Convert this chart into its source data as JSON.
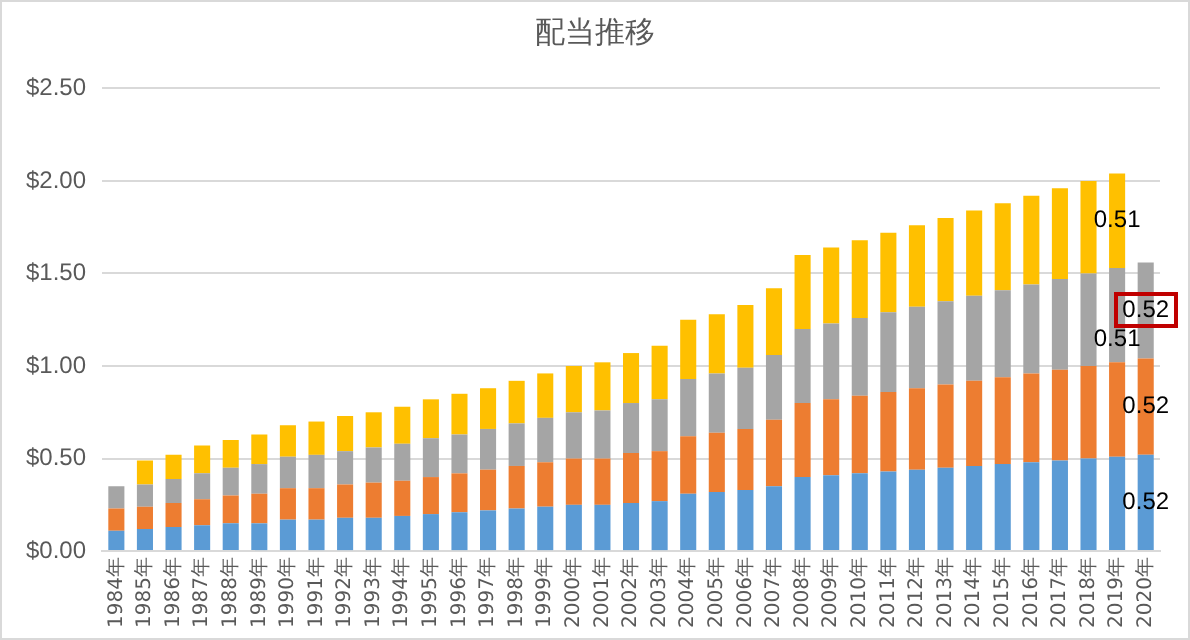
{
  "chart_data": {
    "type": "bar",
    "title": "配当推移",
    "stacked": true,
    "grid": "y",
    "legend": false,
    "categories": [
      "1984年",
      "1985年",
      "1986年",
      "1987年",
      "1988年",
      "1989年",
      "1990年",
      "1991年",
      "1992年",
      "1993年",
      "1994年",
      "1995年",
      "1996年",
      "1997年",
      "1998年",
      "1999年",
      "2000年",
      "2001年",
      "2002年",
      "2003年",
      "2004年",
      "2005年",
      "2006年",
      "2007年",
      "2008年",
      "2009年",
      "2010年",
      "2011年",
      "2012年",
      "2013年",
      "2014年",
      "2015年",
      "2016年",
      "2017年",
      "2018年",
      "2019年",
      "2020年"
    ],
    "ylim": [
      0,
      2.5
    ],
    "yticks": [
      {
        "value": 0,
        "label": "$0.00"
      },
      {
        "value": 0.5,
        "label": "$0.50"
      },
      {
        "value": 1,
        "label": "$1.00"
      },
      {
        "value": 1.5,
        "label": "$1.50"
      },
      {
        "value": 2,
        "label": "$2.00"
      },
      {
        "value": 2.5,
        "label": "$2.50"
      }
    ],
    "series": [
      {
        "color": "#5b9bd5",
        "values": [
          0.11,
          0.12,
          0.13,
          0.14,
          0.15,
          0.15,
          0.17,
          0.17,
          0.18,
          0.18,
          0.19,
          0.2,
          0.21,
          0.22,
          0.23,
          0.24,
          0.25,
          0.25,
          0.26,
          0.27,
          0.31,
          0.32,
          0.33,
          0.35,
          0.4,
          0.41,
          0.42,
          0.43,
          0.44,
          0.45,
          0.46,
          0.47,
          0.48,
          0.49,
          0.5,
          0.51,
          0.52
        ],
        "value_labels": [
          null,
          null,
          null,
          null,
          null,
          null,
          null,
          null,
          null,
          null,
          null,
          null,
          null,
          null,
          null,
          null,
          null,
          null,
          null,
          null,
          null,
          null,
          null,
          null,
          null,
          null,
          null,
          null,
          null,
          null,
          null,
          null,
          null,
          null,
          null,
          null,
          "0.52"
        ]
      },
      {
        "color": "#ed7d31",
        "values": [
          0.12,
          0.12,
          0.13,
          0.14,
          0.15,
          0.16,
          0.17,
          0.17,
          0.18,
          0.19,
          0.19,
          0.2,
          0.21,
          0.22,
          0.23,
          0.24,
          0.25,
          0.25,
          0.27,
          0.27,
          0.31,
          0.32,
          0.33,
          0.36,
          0.4,
          0.41,
          0.42,
          0.43,
          0.44,
          0.45,
          0.46,
          0.47,
          0.48,
          0.49,
          0.5,
          0.51,
          0.52
        ],
        "value_labels": [
          null,
          null,
          null,
          null,
          null,
          null,
          null,
          null,
          null,
          null,
          null,
          null,
          null,
          null,
          null,
          null,
          null,
          null,
          null,
          null,
          null,
          null,
          null,
          null,
          null,
          null,
          null,
          null,
          null,
          null,
          null,
          null,
          null,
          null,
          null,
          null,
          "0.52"
        ]
      },
      {
        "color": "#a5a5a5",
        "values": [
          0.12,
          0.12,
          0.13,
          0.14,
          0.15,
          0.16,
          0.17,
          0.18,
          0.18,
          0.19,
          0.2,
          0.21,
          0.21,
          0.22,
          0.23,
          0.24,
          0.25,
          0.26,
          0.27,
          0.28,
          0.31,
          0.32,
          0.33,
          0.35,
          0.4,
          0.41,
          0.42,
          0.43,
          0.44,
          0.45,
          0.46,
          0.47,
          0.48,
          0.49,
          0.5,
          0.51,
          0.52
        ],
        "value_labels": [
          null,
          null,
          null,
          null,
          null,
          null,
          null,
          null,
          null,
          null,
          null,
          null,
          null,
          null,
          null,
          null,
          null,
          null,
          null,
          null,
          null,
          null,
          null,
          null,
          null,
          null,
          null,
          null,
          null,
          null,
          null,
          null,
          null,
          null,
          null,
          "0.51",
          "0.52"
        ]
      },
      {
        "color": "#ffc000",
        "values": [
          null,
          0.13,
          0.13,
          0.15,
          0.15,
          0.16,
          0.17,
          0.18,
          0.19,
          0.19,
          0.2,
          0.21,
          0.22,
          0.22,
          0.23,
          0.24,
          0.25,
          0.26,
          0.27,
          0.29,
          0.32,
          0.32,
          0.34,
          0.36,
          0.4,
          0.41,
          0.42,
          0.43,
          0.44,
          0.45,
          0.46,
          0.47,
          0.48,
          0.49,
          0.5,
          0.51,
          null
        ],
        "value_labels": [
          null,
          null,
          null,
          null,
          null,
          null,
          null,
          null,
          null,
          null,
          null,
          null,
          null,
          null,
          null,
          null,
          null,
          null,
          null,
          null,
          null,
          null,
          null,
          null,
          null,
          null,
          null,
          null,
          null,
          null,
          null,
          null,
          null,
          null,
          null,
          "0.51",
          null
        ]
      }
    ]
  }
}
